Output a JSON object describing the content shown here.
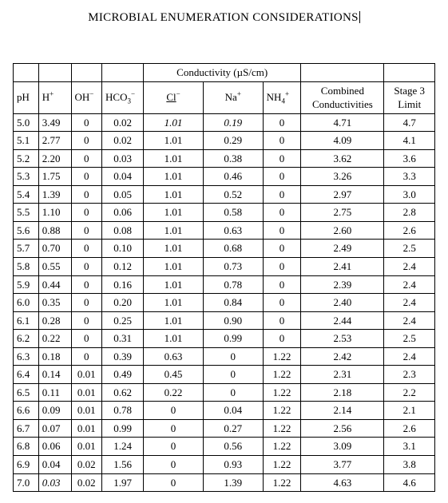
{
  "title": "MICROBIAL ENUMERATION CONSIDERATIONS",
  "table": {
    "group_header": "Conductivity (µS/cm)",
    "columns": {
      "ph": "pH",
      "h": "H⁺",
      "oh": "OH⁻",
      "hco3": "HCO₃⁻",
      "cl": "Cl⁻",
      "na": "Na⁺",
      "nh4": "NH₄⁺",
      "combined": "Combined Conductivities",
      "stage3": "Stage 3 Limit"
    },
    "rows": [
      {
        "ph": "5.0",
        "h": "3.49",
        "oh": "0",
        "hco3": "0.02",
        "cl": "1.01",
        "cl_i": true,
        "na": "0.19",
        "na_i": true,
        "nh4": "0",
        "cc": "4.71",
        "s3": "4.7"
      },
      {
        "ph": "5.1",
        "h": "2.77",
        "oh": "0",
        "hco3": "0.02",
        "cl": "1.01",
        "na": "0.29",
        "nh4": "0",
        "cc": "4.09",
        "s3": "4.1"
      },
      {
        "ph": "5.2",
        "h": "2.20",
        "oh": "0",
        "hco3": "0.03",
        "cl": "1.01",
        "na": "0.38",
        "nh4": "0",
        "cc": "3.62",
        "s3": "3.6"
      },
      {
        "ph": "5.3",
        "h": "1.75",
        "oh": "0",
        "hco3": "0.04",
        "cl": "1.01",
        "na": "0.46",
        "nh4": "0",
        "cc": "3.26",
        "s3": "3.3"
      },
      {
        "ph": "5.4",
        "h": "1.39",
        "oh": "0",
        "hco3": "0.05",
        "cl": "1.01",
        "na": "0.52",
        "nh4": "0",
        "cc": "2.97",
        "s3": "3.0"
      },
      {
        "ph": "5.5",
        "h": "1.10",
        "oh": "0",
        "hco3": "0.06",
        "cl": "1.01",
        "na": "0.58",
        "nh4": "0",
        "cc": "2.75",
        "s3": "2.8"
      },
      {
        "ph": "5.6",
        "h": "0.88",
        "oh": "0",
        "hco3": "0.08",
        "cl": "1.01",
        "na": "0.63",
        "nh4": "0",
        "cc": "2.60",
        "s3": "2.6"
      },
      {
        "ph": "5.7",
        "h": "0.70",
        "oh": "0",
        "hco3": "0.10",
        "cl": "1.01",
        "na": "0.68",
        "nh4": "0",
        "cc": "2.49",
        "s3": "2.5"
      },
      {
        "ph": "5.8",
        "h": "0.55",
        "oh": "0",
        "hco3": "0.12",
        "cl": "1.01",
        "na": "0.73",
        "nh4": "0",
        "cc": "2.41",
        "s3": "2.4"
      },
      {
        "ph": "5.9",
        "h": "0.44",
        "oh": "0",
        "hco3": "0.16",
        "cl": "1.01",
        "na": "0.78",
        "nh4": "0",
        "cc": "2.39",
        "s3": "2.4"
      },
      {
        "ph": "6.0",
        "h": "0.35",
        "oh": "0",
        "hco3": "0.20",
        "cl": "1.01",
        "na": "0.84",
        "nh4": "0",
        "cc": "2.40",
        "s3": "2.4"
      },
      {
        "ph": "6.1",
        "h": "0.28",
        "oh": "0",
        "hco3": "0.25",
        "cl": "1.01",
        "na": "0.90",
        "nh4": "0",
        "cc": "2.44",
        "s3": "2.4"
      },
      {
        "ph": "6.2",
        "h": "0.22",
        "oh": "0",
        "hco3": "0.31",
        "cl": "1.01",
        "na": "0.99",
        "nh4": "0",
        "cc": "2.53",
        "s3": "2.5"
      },
      {
        "ph": "6.3",
        "h": "0.18",
        "oh": "0",
        "hco3": "0.39",
        "cl": "0.63",
        "na": "0",
        "nh4": "1.22",
        "cc": "2.42",
        "s3": "2.4"
      },
      {
        "ph": "6.4",
        "h": "0.14",
        "oh": "0.01",
        "hco3": "0.49",
        "cl": "0.45",
        "na": "0",
        "nh4": "1.22",
        "cc": "2.31",
        "s3": "2.3"
      },
      {
        "ph": "6.5",
        "h": "0.11",
        "oh": "0.01",
        "hco3": "0.62",
        "cl": "0.22",
        "na": "0",
        "nh4": "1.22",
        "cc": "2.18",
        "s3": "2.2"
      },
      {
        "ph": "6.6",
        "h": "0.09",
        "oh": "0.01",
        "hco3": "0.78",
        "cl": "0",
        "na": "0.04",
        "nh4": "1.22",
        "cc": "2.14",
        "s3": "2.1"
      },
      {
        "ph": "6.7",
        "h": "0.07",
        "oh": "0.01",
        "hco3": "0.99",
        "cl": "0",
        "na": "0.27",
        "nh4": "1.22",
        "cc": "2.56",
        "s3": "2.6"
      },
      {
        "ph": "6.8",
        "h": "0.06",
        "oh": "0.01",
        "hco3": "1.24",
        "cl": "0",
        "na": "0.56",
        "nh4": "1.22",
        "cc": "3.09",
        "s3": "3.1"
      },
      {
        "ph": "6.9",
        "h": "0.04",
        "oh": "0.02",
        "hco3": "1.56",
        "cl": "0",
        "na": "0.93",
        "nh4": "1.22",
        "cc": "3.77",
        "s3": "3.8"
      },
      {
        "ph": "7.0",
        "h": "0.03",
        "h_i": true,
        "oh": "0.02",
        "hco3": "1.97",
        "cl": "0",
        "na": "1.39",
        "nh4": "1.22",
        "cc": "4.63",
        "s3": "4.6"
      }
    ]
  }
}
